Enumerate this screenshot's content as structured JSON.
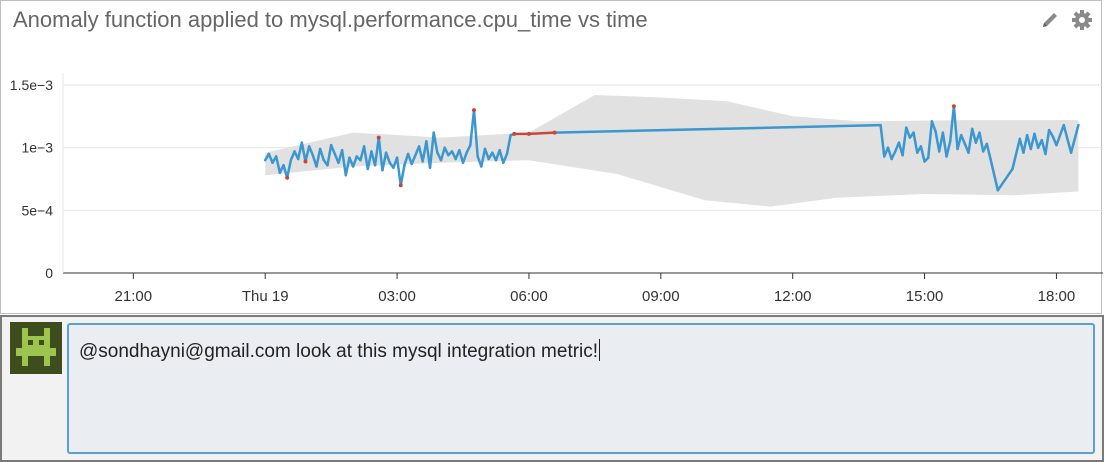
{
  "widget": {
    "title": "Anomaly function applied to mysql.performance.cpu_time vs time",
    "tools": [
      {
        "name": "edit",
        "icon": "pencil-icon"
      },
      {
        "name": "settings",
        "icon": "gear-icon"
      }
    ]
  },
  "chart_data": {
    "type": "line",
    "title": "Anomaly function applied to mysql.performance.cpu_time vs time",
    "y_ticks": [
      "0",
      "5e−4",
      "1e−3",
      "1.5e−3"
    ],
    "ylim": [
      0,
      0.0015
    ],
    "x_ticks": [
      "21:00",
      "Thu 19",
      "03:00",
      "06:00",
      "09:00",
      "12:00",
      "15:00",
      "18:00"
    ],
    "grid": true,
    "colors": {
      "normal": "#3b97cf",
      "anomaly": "#c9473a",
      "band": "#e1e1e1",
      "axis": "#333333",
      "grid": "#e6e6e6"
    },
    "series": [
      {
        "values": [
          [
            "Thu 19 00:00",
            0.0009
          ],
          [
            "Thu 19 00:05",
            0.00095
          ],
          [
            "Thu 19 00:10",
            0.00088
          ],
          [
            "Thu 19 00:15",
            0.00093
          ],
          [
            "Thu 19 00:20",
            0.0008
          ],
          [
            "Thu 19 00:25",
            0.00086
          ],
          [
            "Thu 19 00:30",
            0.00076
          ],
          [
            "Thu 19 00:35",
            0.0009
          ],
          [
            "Thu 19 00:40",
            0.00097
          ],
          [
            "Thu 19 00:45",
            0.00091
          ],
          [
            "Thu 19 00:50",
            0.00104
          ],
          [
            "Thu 19 00:55",
            0.00089
          ],
          [
            "Thu 19 01:00",
            0.00101
          ],
          [
            "Thu 19 01:05",
            0.00094
          ],
          [
            "Thu 19 01:10",
            0.00085
          ],
          [
            "Thu 19 01:15",
            0.00099
          ],
          [
            "Thu 19 01:20",
            0.0009
          ],
          [
            "Thu 19 01:25",
            0.00086
          ],
          [
            "Thu 19 01:30",
            0.00102
          ],
          [
            "Thu 19 01:35",
            0.00095
          ],
          [
            "Thu 19 01:40",
            0.00088
          ],
          [
            "Thu 19 01:45",
            0.00098
          ],
          [
            "Thu 19 01:50",
            0.00078
          ],
          [
            "Thu 19 01:55",
            0.00092
          ],
          [
            "Thu 19 02:00",
            0.00085
          ],
          [
            "Thu 19 02:05",
            0.00093
          ],
          [
            "Thu 19 02:10",
            0.0009
          ],
          [
            "Thu 19 02:15",
            0.00101
          ],
          [
            "Thu 19 02:20",
            0.00083
          ],
          [
            "Thu 19 02:25",
            0.00097
          ],
          [
            "Thu 19 02:30",
            0.00086
          ],
          [
            "Thu 19 02:35",
            0.00108
          ],
          [
            "Thu 19 02:40",
            0.00082
          ],
          [
            "Thu 19 02:45",
            0.00096
          ],
          [
            "Thu 19 02:50",
            0.00088
          ],
          [
            "Thu 19 02:55",
            0.00084
          ],
          [
            "Thu 19 03:00",
            0.00092
          ],
          [
            "Thu 19 03:05",
            0.0007
          ],
          [
            "Thu 19 03:10",
            0.00086
          ],
          [
            "Thu 19 03:15",
            0.00095
          ],
          [
            "Thu 19 03:20",
            0.00087
          ],
          [
            "Thu 19 03:25",
            0.00094
          ],
          [
            "Thu 19 03:30",
            0.00101
          ],
          [
            "Thu 19 03:35",
            0.00089
          ],
          [
            "Thu 19 03:40",
            0.00105
          ],
          [
            "Thu 19 03:45",
            0.00084
          ],
          [
            "Thu 19 03:50",
            0.00112
          ],
          [
            "Thu 19 03:55",
            0.00096
          ],
          [
            "Thu 19 04:00",
            0.0009
          ],
          [
            "Thu 19 04:05",
            0.001
          ],
          [
            "Thu 19 04:10",
            0.00094
          ],
          [
            "Thu 19 04:15",
            0.00097
          ],
          [
            "Thu 19 04:20",
            0.00091
          ],
          [
            "Thu 19 04:25",
            0.00098
          ],
          [
            "Thu 19 04:30",
            0.00088
          ],
          [
            "Thu 19 04:35",
            0.00096
          ],
          [
            "Thu 19 04:40",
            0.00102
          ],
          [
            "Thu 19 04:45",
            0.0013
          ],
          [
            "Thu 19 04:50",
            0.00093
          ],
          [
            "Thu 19 04:55",
            0.00085
          ],
          [
            "Thu 19 05:00",
            0.00099
          ],
          [
            "Thu 19 05:05",
            0.00091
          ],
          [
            "Thu 19 05:10",
            0.00096
          ],
          [
            "Thu 19 05:15",
            0.0009
          ],
          [
            "Thu 19 05:20",
            0.00098
          ],
          [
            "Thu 19 05:25",
            0.00088
          ],
          [
            "Thu 19 05:30",
            0.00095
          ],
          [
            "Thu 19 05:35",
            0.0011
          ],
          [
            "Thu 19 05:40",
            0.00111
          ],
          [
            "Thu 19 06:00",
            0.00111
          ],
          [
            "Thu 19 06:35",
            0.00112
          ],
          [
            "Thu 19 14:00",
            0.00118
          ],
          [
            "Thu 19 14:05",
            0.00093
          ],
          [
            "Thu 19 14:10",
            0.001
          ],
          [
            "Thu 19 14:15",
            0.00091
          ],
          [
            "Thu 19 14:20",
            0.00097
          ],
          [
            "Thu 19 14:25",
            0.00104
          ],
          [
            "Thu 19 14:30",
            0.00094
          ],
          [
            "Thu 19 14:35",
            0.00116
          ],
          [
            "Thu 19 14:40",
            0.00108
          ],
          [
            "Thu 19 14:45",
            0.00112
          ],
          [
            "Thu 19 14:50",
            0.00096
          ],
          [
            "Thu 19 14:55",
            0.00101
          ],
          [
            "Thu 19 15:00",
            0.00089
          ],
          [
            "Thu 19 15:05",
            0.00092
          ],
          [
            "Thu 19 15:10",
            0.00121
          ],
          [
            "Thu 19 15:15",
            0.00113
          ],
          [
            "Thu 19 15:20",
            0.00097
          ],
          [
            "Thu 19 15:25",
            0.00112
          ],
          [
            "Thu 19 15:30",
            0.00093
          ],
          [
            "Thu 19 15:35",
            0.00105
          ],
          [
            "Thu 19 15:40",
            0.00133
          ],
          [
            "Thu 19 15:45",
            0.00099
          ],
          [
            "Thu 19 15:50",
            0.0011
          ],
          [
            "Thu 19 15:55",
            0.00103
          ],
          [
            "Thu 19 16:00",
            0.00096
          ],
          [
            "Thu 19 16:05",
            0.00115
          ],
          [
            "Thu 19 16:10",
            0.00104
          ],
          [
            "Thu 19 16:15",
            0.00112
          ],
          [
            "Thu 19 16:20",
            0.00097
          ],
          [
            "Thu 19 16:25",
            0.00103
          ],
          [
            "Thu 19 16:30",
            0.00091
          ],
          [
            "Thu 19 16:40",
            0.00066
          ],
          [
            "Thu 19 17:00",
            0.00083
          ],
          [
            "Thu 19 17:10",
            0.00107
          ],
          [
            "Thu 19 17:15",
            0.00096
          ],
          [
            "Thu 19 17:20",
            0.0011
          ],
          [
            "Thu 19 17:25",
            0.00099
          ],
          [
            "Thu 19 17:30",
            0.00111
          ],
          [
            "Thu 19 17:35",
            0.001
          ],
          [
            "Thu 19 17:40",
            0.00106
          ],
          [
            "Thu 19 17:45",
            0.00095
          ],
          [
            "Thu 19 17:50",
            0.00114
          ],
          [
            "Thu 19 17:55",
            0.00109
          ],
          [
            "Thu 19 18:00",
            0.00102
          ],
          [
            "Thu 19 18:10",
            0.00118
          ],
          [
            "Thu 19 18:20",
            0.00096
          ],
          [
            "Thu 19 18:30",
            0.00118
          ]
        ],
        "anomalies": [
          "Thu 19 00:30",
          "Thu 19 00:55",
          "Thu 19 02:35",
          "Thu 19 03:05",
          "Thu 19 04:45",
          "Thu 19 05:40",
          "Thu 19 06:00",
          "Thu 19 06:35",
          "Thu 19 15:40"
        ]
      }
    ],
    "band": {
      "upper": [
        [
          "Thu 19 00:00",
          0.00096
        ],
        [
          "Thu 19 02:00",
          0.00112
        ],
        [
          "Thu 19 04:00",
          0.00108
        ],
        [
          "Thu 19 06:00",
          0.00112
        ],
        [
          "Thu 19 07:30",
          0.00142
        ],
        [
          "Thu 19 09:00",
          0.0014
        ],
        [
          "Thu 19 10:30",
          0.00137
        ],
        [
          "Thu 19 12:00",
          0.00125
        ],
        [
          "Thu 19 13:30",
          0.00121
        ],
        [
          "Thu 19 16:00",
          0.00122
        ],
        [
          "Thu 19 18:30",
          0.00122
        ]
      ],
      "lower": [
        [
          "Thu 19 00:00",
          0.00078
        ],
        [
          "Thu 19 02:00",
          0.00085
        ],
        [
          "Thu 19 04:00",
          0.00088
        ],
        [
          "Thu 19 06:00",
          0.0009
        ],
        [
          "Thu 19 08:00",
          0.00079
        ],
        [
          "Thu 19 10:00",
          0.00058
        ],
        [
          "Thu 19 11:30",
          0.00053
        ],
        [
          "Thu 19 13:00",
          0.0006
        ],
        [
          "Thu 19 15:00",
          0.00063
        ],
        [
          "Thu 19 17:00",
          0.00062
        ],
        [
          "Thu 19 18:30",
          0.00065
        ]
      ]
    }
  },
  "comment": {
    "avatar_icon": "robot-avatar-icon",
    "text": "@sondhayni@gmail.com look at this mysql integration metric!"
  }
}
